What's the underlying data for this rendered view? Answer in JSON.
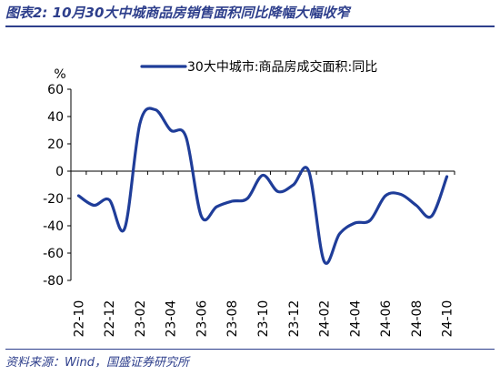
{
  "title": "图表2:  10月30大中城商品房销售面积同比降幅大幅收窄",
  "source": "资料来源：Wind，国盛证券研究所",
  "chart_data": {
    "type": "line",
    "ylabel": "%",
    "ylim": [
      -80,
      60
    ],
    "yticks": [
      60,
      40,
      20,
      0,
      -20,
      -40,
      -60,
      -80
    ],
    "grid": false,
    "legend_position": "top",
    "color": "#1f3d99",
    "x": [
      "22-10",
      "22-11",
      "22-12",
      "23-01",
      "23-02",
      "23-03",
      "23-04",
      "23-05",
      "23-06",
      "23-07",
      "23-08",
      "23-09",
      "23-10",
      "23-11",
      "23-12",
      "24-01",
      "24-02",
      "24-03",
      "24-04",
      "24-05",
      "24-06",
      "24-07",
      "24-08",
      "24-09",
      "24-10"
    ],
    "xtick_labels": [
      "22-10",
      "22-12",
      "23-02",
      "23-04",
      "23-06",
      "23-08",
      "23-10",
      "23-12",
      "24-02",
      "24-04",
      "24-06",
      "24-08",
      "24-10"
    ],
    "series": [
      {
        "name": "30大中城市:商品房成交面积:同比",
        "values": [
          -18,
          -25,
          -21,
          -42,
          35,
          45,
          30,
          25,
          -33,
          -26,
          -22,
          -20,
          -3,
          -15,
          -10,
          0,
          -66,
          -46,
          -38,
          -36,
          -18,
          -17,
          -25,
          -33,
          -4
        ]
      }
    ]
  }
}
